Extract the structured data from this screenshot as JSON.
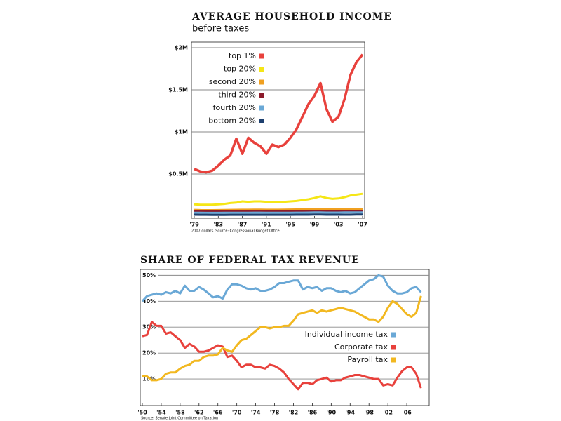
{
  "chart_data": [
    {
      "type": "line",
      "title": "AVERAGE HOUSEHOLD INCOME",
      "subtitle": "before taxes",
      "note": "2007 dollars. Source: Congressional Budget Office",
      "x": [
        1979,
        1980,
        1981,
        1982,
        1983,
        1984,
        1985,
        1986,
        1987,
        1988,
        1989,
        1990,
        1991,
        1992,
        1993,
        1994,
        1995,
        1996,
        1997,
        1998,
        1999,
        2000,
        2001,
        2002,
        2003,
        2004,
        2005,
        2006,
        2007
      ],
      "xlim": [
        1979,
        2007
      ],
      "xticks": [
        {
          "value": 1979,
          "label": "'79"
        },
        {
          "value": 1983,
          "label": "'83"
        },
        {
          "value": 1987,
          "label": "'87"
        },
        {
          "value": 1991,
          "label": "'91"
        },
        {
          "value": 1995,
          "label": "'95"
        },
        {
          "value": 1999,
          "label": "'99"
        },
        {
          "value": 2003,
          "label": "'03"
        },
        {
          "value": 2007,
          "label": "'07"
        }
      ],
      "ylim": [
        0,
        2050000
      ],
      "yticks": [
        {
          "value": 500000,
          "label": "$0.5M"
        },
        {
          "value": 1000000,
          "label": "$1M"
        },
        {
          "value": 1500000,
          "label": "$1.5M"
        },
        {
          "value": 2000000,
          "label": "$2M"
        }
      ],
      "grid": true,
      "legend": "upper left",
      "series": [
        {
          "name": "top 1%",
          "color": "#e8413c",
          "values": [
            560000,
            530000,
            520000,
            540000,
            600000,
            670000,
            720000,
            920000,
            740000,
            930000,
            870000,
            830000,
            740000,
            850000,
            820000,
            850000,
            930000,
            1030000,
            1180000,
            1330000,
            1430000,
            1580000,
            1270000,
            1120000,
            1180000,
            1390000,
            1680000,
            1830000,
            1920000
          ]
        },
        {
          "name": "top 20%",
          "color": "#f5e616",
          "values": [
            140000,
            135000,
            135000,
            135000,
            140000,
            145000,
            155000,
            160000,
            175000,
            170000,
            175000,
            175000,
            170000,
            165000,
            170000,
            170000,
            175000,
            180000,
            190000,
            200000,
            215000,
            235000,
            215000,
            205000,
            210000,
            225000,
            245000,
            255000,
            265000
          ]
        },
        {
          "name": "second 20%",
          "color": "#f0a020",
          "values": [
            74000,
            72000,
            71000,
            71000,
            72000,
            73000,
            74000,
            75000,
            76000,
            76000,
            77000,
            77000,
            76000,
            76000,
            76000,
            77000,
            78000,
            79000,
            80000,
            82000,
            84000,
            83000,
            82000,
            82000,
            83000,
            84000,
            85000,
            86000,
            87000
          ]
        },
        {
          "name": "third 20%",
          "color": "#8b1a2a",
          "values": [
            56000,
            55000,
            54000,
            54000,
            55000,
            55000,
            56000,
            56000,
            57000,
            57000,
            57000,
            57000,
            56000,
            56000,
            56000,
            56000,
            57000,
            57000,
            58000,
            59000,
            60000,
            60000,
            59000,
            59000,
            59000,
            60000,
            60000,
            61000,
            61000
          ]
        },
        {
          "name": "fourth 20%",
          "color": "#6aa8d6",
          "values": [
            40000,
            39000,
            38000,
            38000,
            38000,
            39000,
            39000,
            40000,
            40000,
            40000,
            41000,
            41000,
            40000,
            40000,
            40000,
            40000,
            40000,
            41000,
            41000,
            42000,
            43000,
            43000,
            42000,
            42000,
            42000,
            43000,
            43000,
            44000,
            44000
          ]
        },
        {
          "name": "bottom 20%",
          "color": "#1d3f6e",
          "values": [
            17000,
            16000,
            16000,
            15000,
            15000,
            15000,
            16000,
            16000,
            16000,
            16000,
            16000,
            16000,
            16000,
            16000,
            16000,
            16000,
            16000,
            17000,
            17000,
            17000,
            18000,
            18000,
            17000,
            17000,
            17000,
            17000,
            17000,
            18000,
            18000
          ]
        }
      ]
    },
    {
      "type": "line",
      "title": "SHARE OF FEDERAL TAX REVENUE",
      "note": "Source: Senate Joint Committee on Taxation",
      "x": [
        1950,
        1951,
        1952,
        1953,
        1954,
        1955,
        1956,
        1957,
        1958,
        1959,
        1960,
        1961,
        1962,
        1963,
        1964,
        1965,
        1966,
        1967,
        1968,
        1969,
        1970,
        1971,
        1972,
        1973,
        1974,
        1975,
        1976,
        1977,
        1978,
        1979,
        1980,
        1981,
        1982,
        1983,
        1984,
        1985,
        1986,
        1987,
        1988,
        1989,
        1990,
        1991,
        1992,
        1993,
        1994,
        1995,
        1996,
        1997,
        1998,
        1999,
        2000,
        2001,
        2002,
        2003,
        2004,
        2005,
        2006,
        2007,
        2008,
        2009
      ],
      "xlim": [
        1950,
        2010
      ],
      "xticks": [
        {
          "value": 1950,
          "label": "'50"
        },
        {
          "value": 1954,
          "label": "'54"
        },
        {
          "value": 1958,
          "label": "'58"
        },
        {
          "value": 1962,
          "label": "'62"
        },
        {
          "value": 1966,
          "label": "'66"
        },
        {
          "value": 1970,
          "label": "'70"
        },
        {
          "value": 1974,
          "label": "'74"
        },
        {
          "value": 1978,
          "label": "'78"
        },
        {
          "value": 1982,
          "label": "'82"
        },
        {
          "value": 1986,
          "label": "'86"
        },
        {
          "value": 1990,
          "label": "'90"
        },
        {
          "value": 1994,
          "label": "'94"
        },
        {
          "value": 1998,
          "label": "'98"
        },
        {
          "value": 2002,
          "label": "'02"
        },
        {
          "value": 2006,
          "label": "'06"
        }
      ],
      "ylim": [
        0,
        52
      ],
      "yticks": [
        {
          "value": 10,
          "label": "10%"
        },
        {
          "value": 20,
          "label": "20%"
        },
        {
          "value": 30,
          "label": "30%"
        },
        {
          "value": 40,
          "label": "40%"
        },
        {
          "value": 50,
          "label": "50%"
        }
      ],
      "grid": true,
      "legend": "lower right",
      "series": [
        {
          "name": "Individual income tax",
          "color": "#6aa8d6",
          "values": [
            40,
            42,
            42.5,
            43,
            42.5,
            43.5,
            43,
            44,
            43,
            46,
            44,
            44,
            45.5,
            44.5,
            43,
            41.5,
            42,
            41,
            44.5,
            46.5,
            46.5,
            46,
            45,
            44.5,
            45,
            44,
            44,
            44.5,
            45.5,
            47,
            47,
            47.5,
            48,
            48,
            44.5,
            45.5,
            45,
            45.5,
            44,
            45,
            45,
            44,
            43.5,
            44,
            43,
            43.5,
            45,
            46.5,
            48,
            48.5,
            50,
            49.5,
            46,
            44,
            43,
            43,
            43.5,
            45,
            45.5,
            43.5
          ]
        },
        {
          "name": "Corporate tax",
          "color": "#e8413c",
          "values": [
            26.5,
            27,
            32,
            30.5,
            30.5,
            27.5,
            28,
            26.5,
            25,
            22,
            23.5,
            22.5,
            20.5,
            20.5,
            21,
            22,
            23,
            22.5,
            18.5,
            19,
            17,
            14.5,
            15.5,
            15.5,
            14.5,
            14.5,
            14,
            15.5,
            15,
            14,
            12.5,
            10,
            8,
            6,
            8.5,
            8.5,
            8,
            9.5,
            10,
            10.5,
            9,
            9.5,
            9.5,
            10.5,
            11,
            11.5,
            11.5,
            11,
            10.5,
            10,
            10,
            7.5,
            8,
            7.5,
            10.5,
            13,
            14.5,
            14.5,
            12,
            6.5
          ]
        },
        {
          "name": "Payroll tax",
          "color": "#f2b820",
          "values": [
            11,
            11,
            9.5,
            9.5,
            10,
            12,
            12.5,
            12.5,
            14,
            15,
            15.5,
            17,
            17,
            18.5,
            19,
            19,
            19.5,
            22,
            21,
            20.5,
            23,
            25,
            25.5,
            27,
            28.5,
            30,
            30,
            29.5,
            30,
            30,
            30.5,
            30.5,
            32.5,
            35,
            35.5,
            36,
            36.5,
            35.5,
            36.5,
            36,
            36.5,
            37,
            37.5,
            37,
            36.5,
            36,
            35,
            34,
            33,
            33,
            32,
            34,
            37.5,
            40,
            39,
            37,
            35,
            34,
            35.5,
            42
          ]
        }
      ]
    }
  ]
}
